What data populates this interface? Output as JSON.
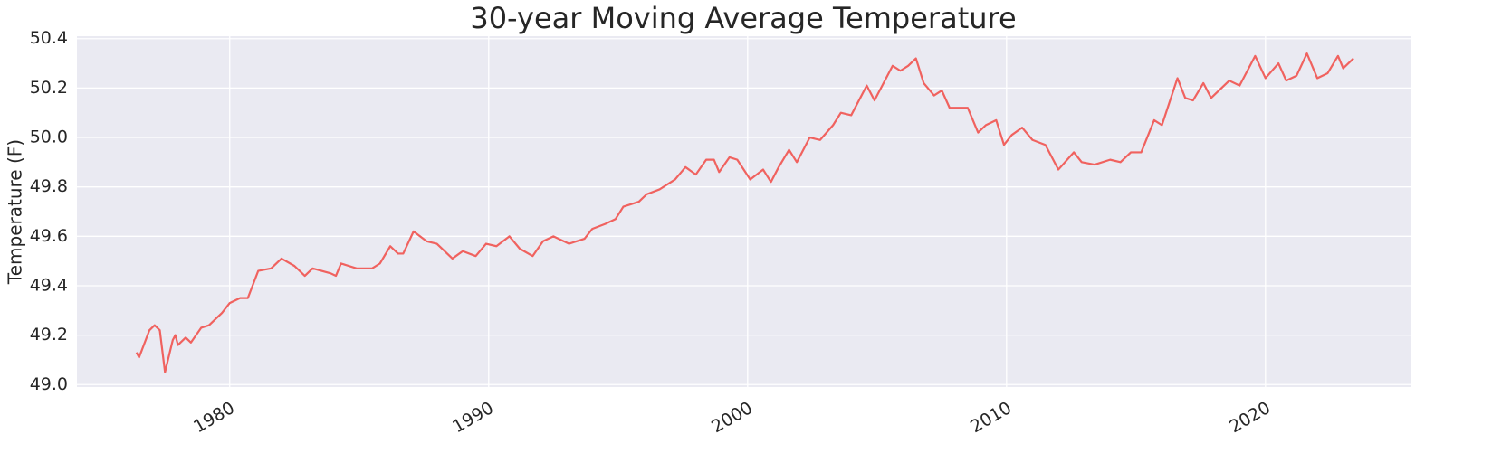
{
  "chart_data": {
    "type": "line",
    "title": "30-year Moving Average Temperature",
    "y_label": "Temperature (F)",
    "x": [
      1976.4,
      1976.5,
      1976.9,
      1977.1,
      1977.3,
      1977.5,
      1977.8,
      1977.9,
      1978.0,
      1978.3,
      1978.5,
      1978.9,
      1979.2,
      1979.7,
      1980.0,
      1980.4,
      1980.7,
      1981.1,
      1981.6,
      1982.0,
      1982.5,
      1982.9,
      1983.2,
      1983.9,
      1984.1,
      1984.3,
      1984.9,
      1985.5,
      1985.8,
      1986.2,
      1986.5,
      1986.7,
      1987.1,
      1987.6,
      1988.0,
      1988.6,
      1989.0,
      1989.5,
      1989.9,
      1990.3,
      1990.8,
      1991.2,
      1991.7,
      1992.1,
      1992.5,
      1993.1,
      1993.7,
      1994.0,
      1994.5,
      1994.9,
      1995.2,
      1995.8,
      1996.1,
      1996.6,
      1997.2,
      1997.6,
      1998.0,
      1998.4,
      1998.7,
      1998.9,
      1999.3,
      1999.6,
      2000.1,
      2000.6,
      2000.9,
      2001.2,
      2001.6,
      2001.9,
      2002.4,
      2002.8,
      2003.3,
      2003.6,
      2004.0,
      2004.6,
      2004.9,
      2005.6,
      2005.9,
      2006.2,
      2006.5,
      2006.8,
      2007.2,
      2007.5,
      2007.8,
      2008.5,
      2008.9,
      2009.2,
      2009.6,
      2009.9,
      2010.2,
      2010.6,
      2011.0,
      2011.5,
      2012.0,
      2012.6,
      2012.9,
      2013.4,
      2014.0,
      2014.4,
      2014.8,
      2015.2,
      2015.7,
      2016.0,
      2016.6,
      2016.9,
      2017.2,
      2017.6,
      2017.9,
      2018.6,
      2019.0,
      2019.6,
      2020.0,
      2020.5,
      2020.8,
      2021.2,
      2021.6,
      2022.0,
      2022.4,
      2022.8,
      2023.0,
      2023.4
    ],
    "series": [
      {
        "name": "Temperature",
        "color": "#f0625f",
        "values": [
          49.13,
          49.11,
          49.22,
          49.24,
          49.22,
          49.05,
          49.18,
          49.2,
          49.16,
          49.19,
          49.17,
          49.23,
          49.24,
          49.29,
          49.33,
          49.35,
          49.35,
          49.46,
          49.47,
          49.51,
          49.48,
          49.44,
          49.47,
          49.45,
          49.44,
          49.49,
          49.47,
          49.47,
          49.49,
          49.56,
          49.53,
          49.53,
          49.62,
          49.58,
          49.57,
          49.51,
          49.54,
          49.52,
          49.57,
          49.56,
          49.6,
          49.55,
          49.52,
          49.58,
          49.6,
          49.57,
          49.59,
          49.63,
          49.65,
          49.67,
          49.72,
          49.74,
          49.77,
          49.79,
          49.83,
          49.88,
          49.85,
          49.91,
          49.91,
          49.86,
          49.92,
          49.91,
          49.83,
          49.87,
          49.82,
          49.88,
          49.95,
          49.9,
          50.0,
          49.99,
          50.05,
          50.1,
          50.09,
          50.21,
          50.15,
          50.29,
          50.27,
          50.29,
          50.32,
          50.22,
          50.17,
          50.19,
          50.12,
          50.12,
          50.02,
          50.05,
          50.07,
          49.97,
          50.01,
          50.04,
          49.99,
          49.97,
          49.87,
          49.94,
          49.9,
          49.89,
          49.91,
          49.9,
          49.94,
          49.94,
          50.07,
          50.05,
          50.24,
          50.16,
          50.15,
          50.22,
          50.16,
          50.23,
          50.21,
          50.33,
          50.24,
          50.3,
          50.23,
          50.25,
          50.34,
          50.24,
          50.26,
          50.33,
          50.28,
          50.32
        ]
      }
    ],
    "xlim": [
      1974.1,
      2025.6
    ],
    "xticks": [
      1980,
      1990,
      2000,
      2010,
      2020
    ],
    "ylim": [
      48.99,
      50.41
    ],
    "yticks": [
      {
        "value": 49,
        "label": "49.0"
      },
      49.2,
      49.4,
      49.6,
      49.8,
      {
        "value": 50,
        "label": "50.0"
      },
      50.2,
      50.4
    ],
    "grid": true
  }
}
